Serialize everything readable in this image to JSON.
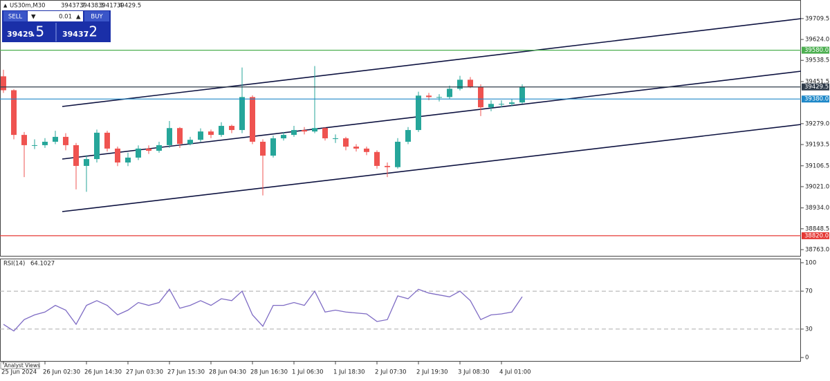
{
  "header": {
    "symbol": "US30m,M30",
    "ohlc": [
      39437.7,
      39438.3,
      39417.4,
      39429.5
    ]
  },
  "trade_panel": {
    "sell": "SELL",
    "buy": "BUY",
    "volume": "0.01",
    "sell_price_main": "39429",
    "sell_price_small": ".5",
    "buy_price_main": "39437",
    "buy_price_small": ".2"
  },
  "footer": {
    "analyst_views": "Analyst Views"
  },
  "chart_data": [
    {
      "type": "candlestick",
      "open": [
        39473,
        39416,
        39233,
        39191,
        39191,
        39205,
        39225,
        39191,
        39106,
        39134,
        39242,
        39177,
        39120,
        39140,
        39177,
        39168,
        39191,
        39261,
        39196,
        39213,
        39247,
        39233,
        39270,
        39253,
        39388,
        39205,
        39148,
        39219,
        39233,
        39253,
        39247,
        39261,
        39219,
        39219,
        39185,
        39177,
        39163,
        39106,
        39101,
        39205,
        39253,
        39394,
        39388,
        39388,
        39422,
        39459,
        39430,
        39346,
        39360,
        39360,
        39366
      ],
      "high": [
        39500,
        39420,
        39245,
        39215,
        39220,
        39250,
        39240,
        39200,
        39150,
        39255,
        39250,
        39185,
        39160,
        39190,
        39190,
        39205,
        39290,
        39265,
        39225,
        39260,
        39255,
        39285,
        39275,
        39509,
        39395,
        39215,
        39230,
        39245,
        39270,
        39265,
        39515,
        39265,
        39235,
        39225,
        39195,
        39185,
        39170,
        39120,
        39220,
        39265,
        39410,
        39405,
        39400,
        39435,
        39475,
        39470,
        39440,
        39375,
        39375,
        39380,
        39440
      ],
      "low": [
        39405,
        39215,
        39060,
        39175,
        39180,
        39195,
        39170,
        39010,
        39000,
        39120,
        39165,
        39105,
        39105,
        39130,
        39155,
        39160,
        39180,
        39180,
        39190,
        39205,
        39220,
        39225,
        39240,
        39240,
        39195,
        38985,
        39140,
        39210,
        39225,
        39235,
        39240,
        39210,
        39200,
        39170,
        39165,
        39150,
        39095,
        39060,
        39095,
        39195,
        39245,
        39375,
        39370,
        39380,
        39415,
        39425,
        39310,
        39330,
        39345,
        39350,
        39360
      ],
      "close": [
        39416,
        39233,
        39191,
        39191,
        39205,
        39225,
        39191,
        39106,
        39134,
        39242,
        39177,
        39120,
        39140,
        39177,
        39168,
        39191,
        39261,
        39196,
        39213,
        39247,
        39233,
        39270,
        39253,
        39388,
        39205,
        39148,
        39219,
        39233,
        39253,
        39247,
        39261,
        39219,
        39219,
        39185,
        39177,
        39163,
        39106,
        39101,
        39205,
        39253,
        39394,
        39388,
        39388,
        39422,
        39459,
        39430,
        39346,
        39360,
        39360,
        39366,
        39429.5
      ],
      "up_color": "#26a69a",
      "down_color": "#ef5350",
      "ylim": [
        38737.6,
        39782.8
      ],
      "yticks": [
        {
          "value": 39709.5,
          "label": "39709.5"
        },
        {
          "value": 39624.0,
          "label": "39624.0"
        },
        {
          "value": 39538.5,
          "label": "39538.5"
        },
        {
          "value": 39451.5,
          "label": "39451.5"
        },
        {
          "value": 39279.0,
          "label": "39279.0"
        },
        {
          "value": 39193.5,
          "label": "39193.5"
        },
        {
          "value": 39106.5,
          "label": "39106.5"
        },
        {
          "value": 39021.0,
          "label": "39021.0"
        },
        {
          "value": 38934.0,
          "label": "38934.0"
        },
        {
          "value": 38848.5,
          "label": "38848.5"
        },
        {
          "value": 38763.0,
          "label": "38763.0"
        }
      ],
      "levels": [
        {
          "value": 39580.0,
          "label": "39580.0",
          "color": "#4caf50"
        },
        {
          "value": 39429.5,
          "label": "39429.5",
          "color": "#2f3b4a"
        },
        {
          "value": 39380.0,
          "label": "39380.0",
          "color": "#1e88c8"
        },
        {
          "value": 38820.0,
          "label": "38820.0",
          "color": "#e53935"
        }
      ],
      "xticks": [
        {
          "value": 0,
          "label": "25 Jun 2024"
        },
        {
          "value": 4,
          "label": "26 Jun 02:30"
        },
        {
          "value": 8,
          "label": "26 Jun 14:30"
        },
        {
          "value": 12,
          "label": "27 Jun 03:30"
        },
        {
          "value": 16,
          "label": "27 Jun 15:30"
        },
        {
          "value": 20,
          "label": "28 Jun 04:30"
        },
        {
          "value": 24,
          "label": "28 Jun 16:30"
        },
        {
          "value": 28,
          "label": "1 Jul 06:30"
        },
        {
          "value": 32,
          "label": "1 Jul 18:30"
        },
        {
          "value": 36,
          "label": "2 Jul 07:30"
        },
        {
          "value": 40,
          "label": "2 Jul 19:30"
        },
        {
          "value": 44,
          "label": "3 Jul 08:30"
        },
        {
          "value": 48,
          "label": "4 Jul 01:00"
        }
      ]
    },
    {
      "type": "line",
      "title": "RSI(14)",
      "color": "#7e6bc4",
      "values": [
        35,
        28,
        40,
        45,
        48,
        55,
        50,
        35,
        55,
        60,
        55,
        45,
        50,
        58,
        55,
        58,
        72,
        52,
        55,
        60,
        55,
        62,
        60,
        70,
        45,
        33,
        55,
        55,
        58,
        55,
        70,
        48,
        50,
        48,
        47,
        46,
        38,
        40,
        65,
        62,
        72,
        68,
        66,
        64,
        70,
        60,
        40,
        45,
        46,
        48,
        64.1027
      ],
      "ylim": [
        -3.6,
        103.6
      ],
      "yticks": [
        0,
        30,
        70,
        100
      ],
      "levels": [
        30,
        70
      ]
    }
  ]
}
